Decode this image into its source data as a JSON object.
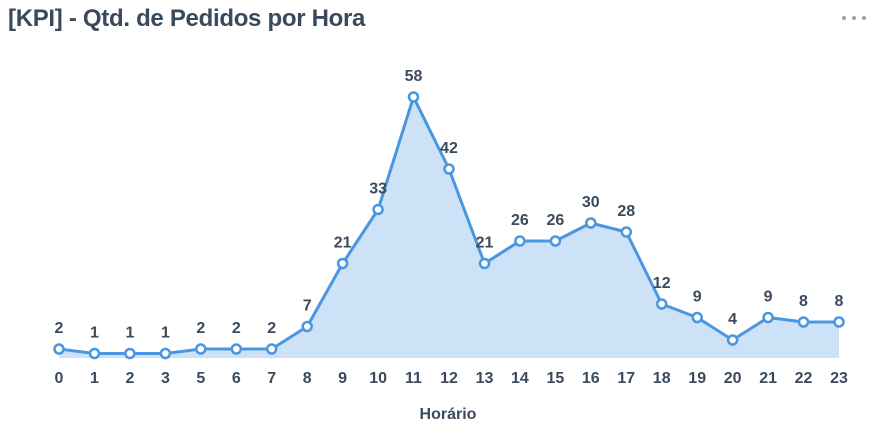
{
  "header": {
    "title": "[KPI] - Qtd. de Pedidos por Hora",
    "more_icon": "more-horizontal-icon"
  },
  "colors": {
    "line": "#4a97e0",
    "area": "#cde2f7",
    "marker_fill": "#ffffff",
    "text": "#3b4a5c"
  },
  "chart_data": {
    "type": "area",
    "xlabel": "Horário",
    "ylabel": "",
    "categories": [
      "0",
      "1",
      "2",
      "3",
      "5",
      "6",
      "7",
      "8",
      "9",
      "10",
      "11",
      "12",
      "13",
      "14",
      "15",
      "16",
      "17",
      "18",
      "19",
      "20",
      "21",
      "22",
      "23"
    ],
    "values": [
      2,
      1,
      1,
      1,
      2,
      2,
      2,
      7,
      21,
      33,
      58,
      42,
      21,
      26,
      26,
      30,
      28,
      12,
      9,
      4,
      9,
      8,
      8
    ],
    "ylim": [
      0,
      58
    ],
    "grid": false,
    "legend": "none",
    "data_labels": true
  }
}
